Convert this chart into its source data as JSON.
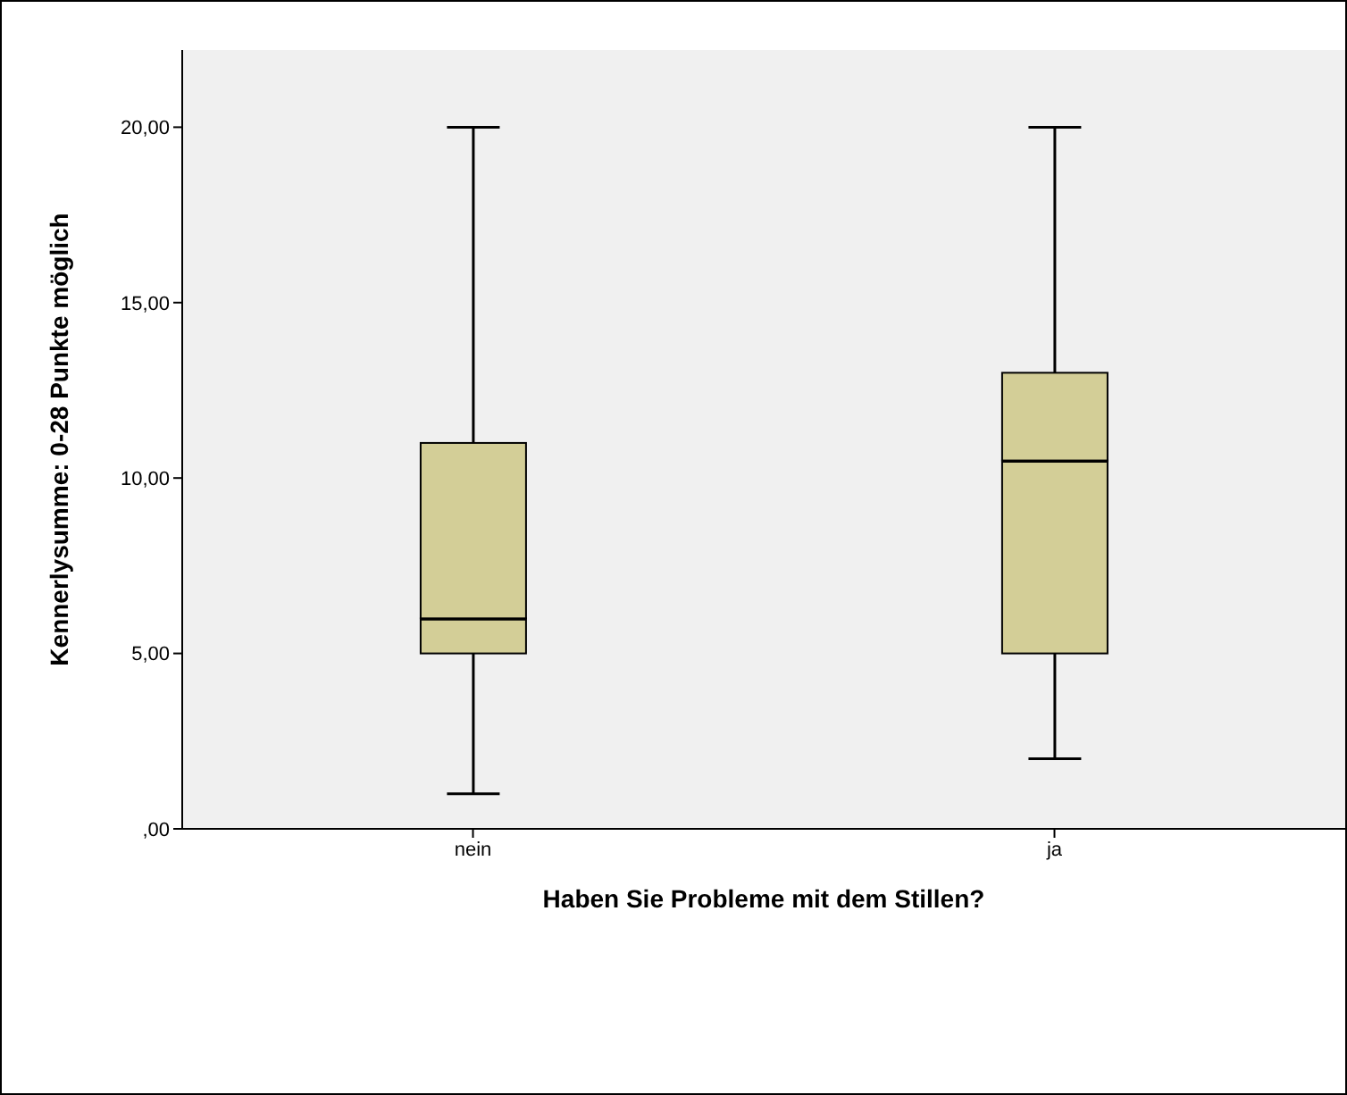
{
  "chart_data": {
    "type": "box",
    "xlabel": "Haben Sie Probleme mit dem Stillen?",
    "ylabel": "Kennerlysumme: 0-28 Punkte möglich",
    "categories": [
      "nein",
      "ja"
    ],
    "color": "#d3ce97",
    "boxes": [
      {
        "low": 1,
        "q1": 5,
        "median": 6,
        "q3": 11,
        "high": 20
      },
      {
        "low": 2,
        "q1": 5,
        "median": 10.5,
        "q3": 13,
        "high": 20
      }
    ],
    "ylim": [
      0,
      22.2
    ],
    "yticks": [
      {
        "value": 0,
        "label": ",00"
      },
      {
        "value": 5,
        "label": "5,00"
      },
      {
        "value": 10,
        "label": "10,00"
      },
      {
        "value": 15,
        "label": "15,00"
      },
      {
        "value": 20,
        "label": "20,00"
      }
    ]
  }
}
